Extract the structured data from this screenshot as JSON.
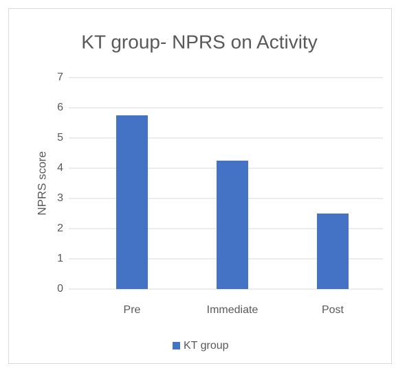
{
  "chart_data": {
    "type": "bar",
    "title": "KT group- NPRS on Activity",
    "y_label": "NPRS score",
    "categories": [
      "Pre",
      "Immediate",
      "Post"
    ],
    "series": [
      {
        "name": "KT group",
        "color": "#4472c4",
        "values": [
          5.75,
          4.25,
          2.5
        ]
      }
    ],
    "ylim": [
      0,
      7
    ],
    "yticks": [
      0,
      1,
      2,
      3,
      4,
      5,
      6,
      7
    ],
    "grid": true,
    "legend": "bottom"
  }
}
